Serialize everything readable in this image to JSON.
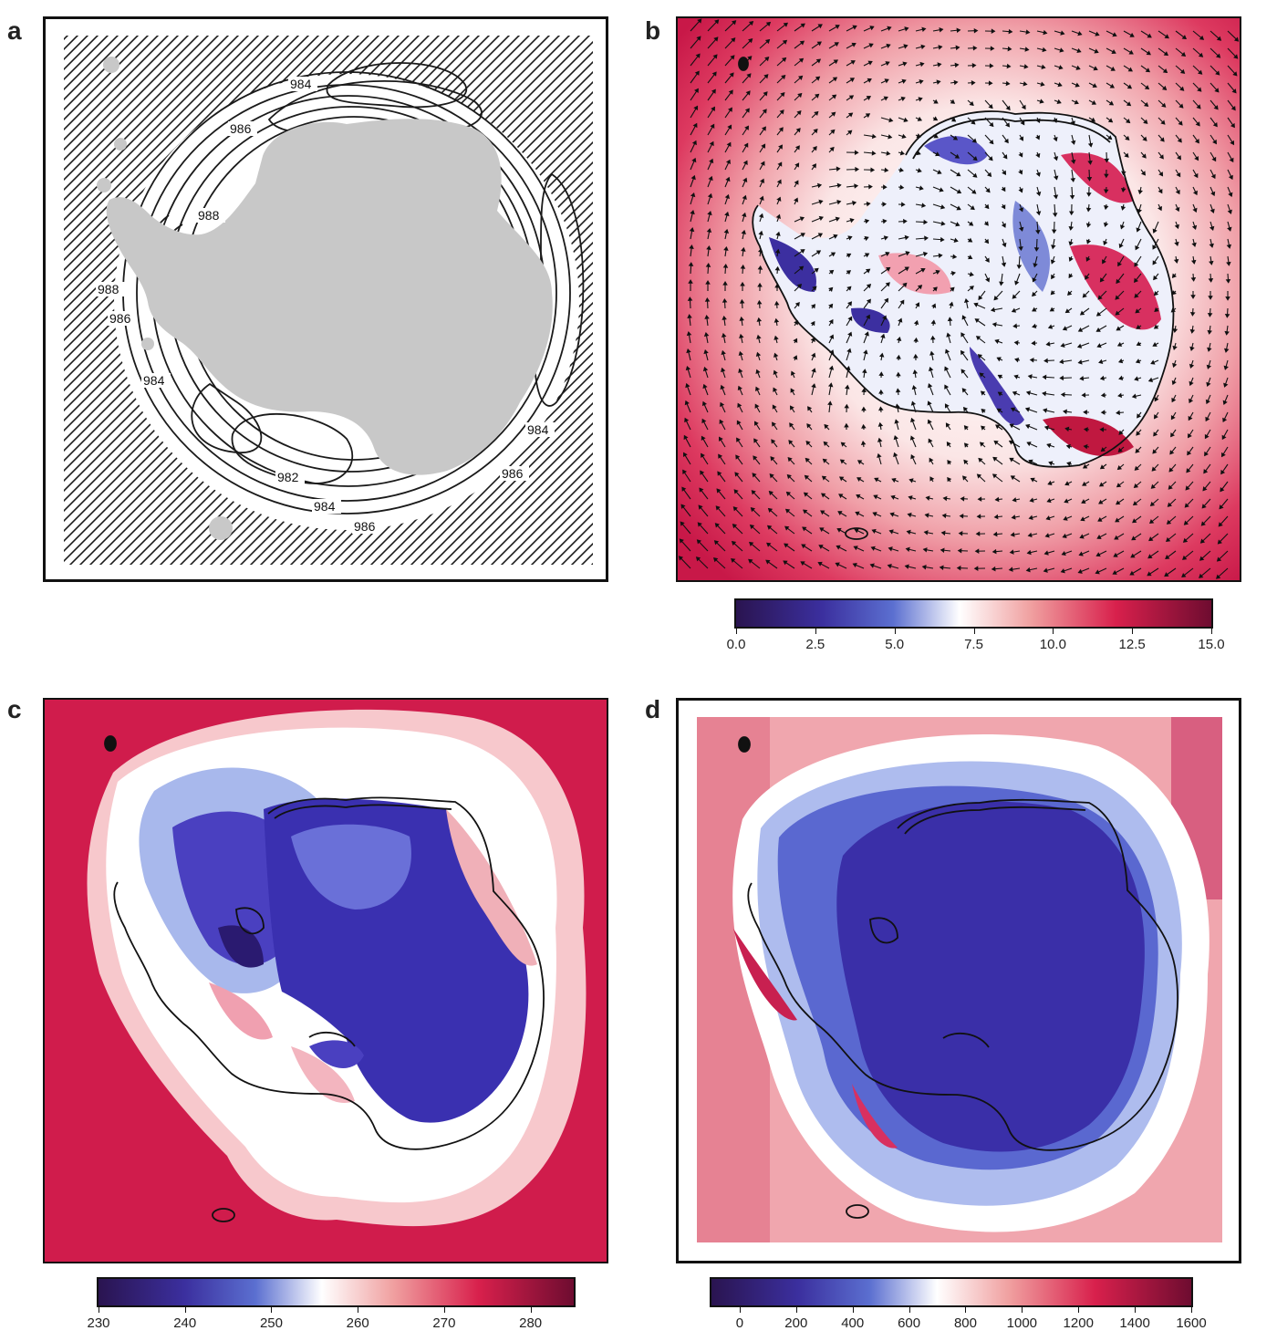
{
  "figure": {
    "panels": [
      {
        "label": "a"
      },
      {
        "label": "b"
      },
      {
        "label": "c"
      },
      {
        "label": "d"
      }
    ]
  },
  "panel_a": {
    "contour_labels": [
      "984",
      "986",
      "988",
      "988",
      "986",
      "984",
      "982",
      "984",
      "986",
      "984",
      "986"
    ],
    "colors": {
      "land": "#c8c8c8",
      "contour": "#1a1a1a"
    }
  },
  "panel_b": {
    "colorbar": {
      "ticks": [
        "0.0",
        "2.5",
        "5.0",
        "7.5",
        "10.0",
        "12.5",
        "15.0"
      ],
      "range": [
        0,
        15
      ],
      "colors": [
        "#2a1450",
        "#3b2f9e",
        "#5b6fd0",
        "#ffffff",
        "#f0a0a0",
        "#d8204c",
        "#6e0c30"
      ]
    }
  },
  "panel_c": {
    "colorbar": {
      "ticks": [
        "230",
        "240",
        "250",
        "260",
        "270",
        "280"
      ],
      "range": [
        230,
        285
      ],
      "colors": [
        "#2a1450",
        "#3b2f9e",
        "#5b6fd0",
        "#ffffff",
        "#f0a0a0",
        "#d8204c",
        "#6e0c30"
      ]
    }
  },
  "panel_d": {
    "colorbar": {
      "ticks": [
        "0",
        "200",
        "400",
        "600",
        "800",
        "1000",
        "1200",
        "1400",
        "1600"
      ],
      "range": [
        -100,
        1600
      ],
      "colors": [
        "#2a1450",
        "#3b2f9e",
        "#5b6fd0",
        "#ffffff",
        "#f0a0a0",
        "#d8204c",
        "#6e0c30"
      ]
    }
  }
}
